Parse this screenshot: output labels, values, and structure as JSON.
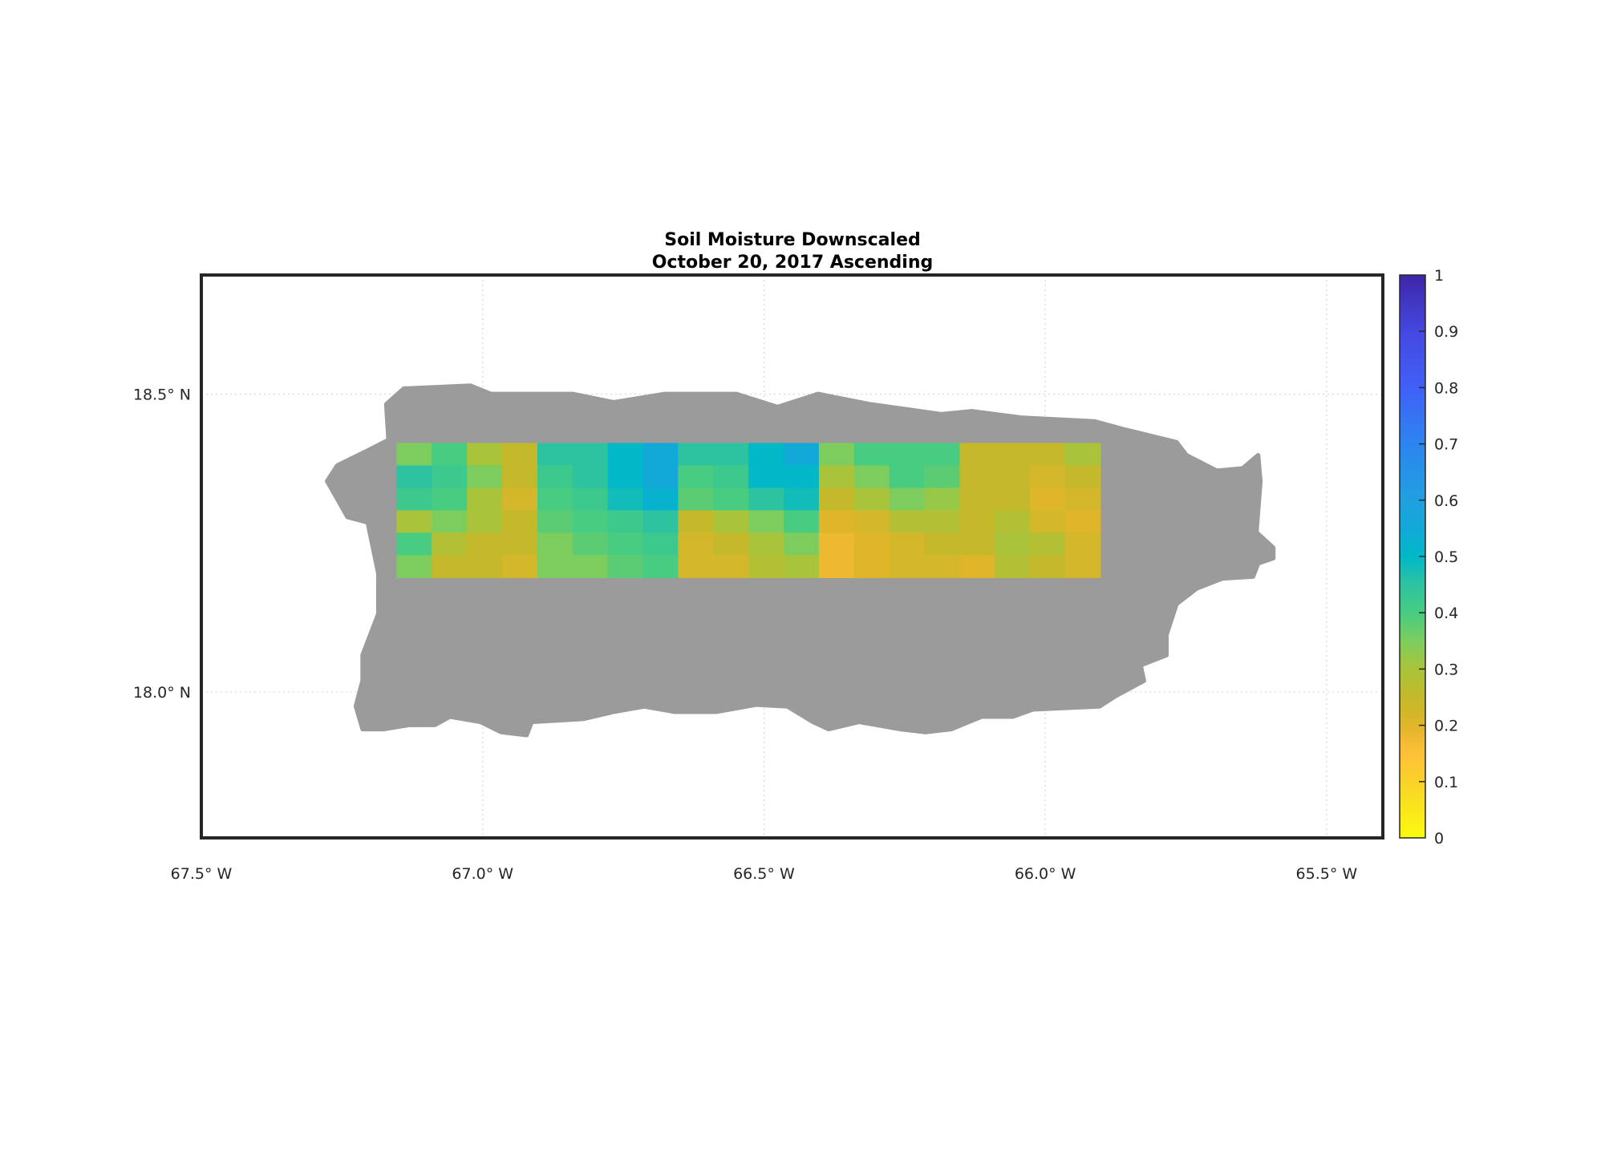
{
  "chart_data": {
    "type": "heatmap",
    "title": [
      "Soil Moisture Downscaled",
      "October 20, 2017 Ascending"
    ],
    "xlim": [
      -67.5,
      -65.4
    ],
    "ylim": [
      17.755,
      18.7
    ],
    "x_ticks": [
      -67.5,
      -67.0,
      -66.5,
      -66.0,
      -65.5
    ],
    "x_tick_labels": [
      "67.5° W",
      "67.0° W",
      "66.5° W",
      "66.0° W",
      "65.5° W"
    ],
    "y_ticks": [
      18.5,
      18.0
    ],
    "y_tick_labels": [
      "18.5° N",
      "18.0° N"
    ],
    "grid": true,
    "land_color": "#9b9b9b",
    "land_outline_lonlat": [
      [
        -67.171,
        18.483
      ],
      [
        -67.14,
        18.509
      ],
      [
        -67.022,
        18.514
      ],
      [
        -66.985,
        18.5
      ],
      [
        -66.84,
        18.5
      ],
      [
        -66.767,
        18.486
      ],
      [
        -66.676,
        18.5
      ],
      [
        -66.549,
        18.5
      ],
      [
        -66.476,
        18.478
      ],
      [
        -66.404,
        18.5
      ],
      [
        -66.313,
        18.483
      ],
      [
        -66.185,
        18.466
      ],
      [
        -66.131,
        18.471
      ],
      [
        -66.04,
        18.46
      ],
      [
        -65.913,
        18.454
      ],
      [
        -65.858,
        18.44
      ],
      [
        -65.767,
        18.419
      ],
      [
        -65.749,
        18.397
      ],
      [
        -65.695,
        18.371
      ],
      [
        -65.649,
        18.375
      ],
      [
        -65.622,
        18.397
      ],
      [
        -65.618,
        18.354
      ],
      [
        -65.625,
        18.268
      ],
      [
        -65.595,
        18.242
      ],
      [
        -65.595,
        18.225
      ],
      [
        -65.622,
        18.216
      ],
      [
        -65.631,
        18.194
      ],
      [
        -65.685,
        18.191
      ],
      [
        -65.731,
        18.174
      ],
      [
        -65.767,
        18.148
      ],
      [
        -65.785,
        18.096
      ],
      [
        -65.785,
        18.062
      ],
      [
        -65.831,
        18.045
      ],
      [
        -65.825,
        18.019
      ],
      [
        -65.876,
        17.993
      ],
      [
        -65.904,
        17.976
      ],
      [
        -66.022,
        17.971
      ],
      [
        -66.058,
        17.959
      ],
      [
        -66.113,
        17.959
      ],
      [
        -66.167,
        17.938
      ],
      [
        -66.213,
        17.933
      ],
      [
        -66.258,
        17.938
      ],
      [
        -66.331,
        17.95
      ],
      [
        -66.385,
        17.938
      ],
      [
        -66.413,
        17.95
      ],
      [
        -66.458,
        17.976
      ],
      [
        -66.513,
        17.979
      ],
      [
        -66.585,
        17.967
      ],
      [
        -66.658,
        17.967
      ],
      [
        -66.713,
        17.976
      ],
      [
        -66.767,
        17.967
      ],
      [
        -66.822,
        17.955
      ],
      [
        -66.913,
        17.95
      ],
      [
        -66.922,
        17.928
      ],
      [
        -66.967,
        17.933
      ],
      [
        -67.004,
        17.95
      ],
      [
        -67.058,
        17.959
      ],
      [
        -67.085,
        17.945
      ],
      [
        -67.131,
        17.945
      ],
      [
        -67.176,
        17.938
      ],
      [
        -67.213,
        17.938
      ],
      [
        -67.225,
        17.976
      ],
      [
        -67.213,
        18.019
      ],
      [
        -67.213,
        18.062
      ],
      [
        -67.185,
        18.131
      ],
      [
        -67.185,
        18.199
      ],
      [
        -67.204,
        18.285
      ],
      [
        -67.24,
        18.294
      ],
      [
        -67.276,
        18.354
      ],
      [
        -67.258,
        18.38
      ],
      [
        -67.204,
        18.405
      ],
      [
        -67.167,
        18.423
      ]
    ],
    "data_extent": {
      "lon": [
        -67.153,
        -65.902
      ],
      "lat": [
        18.192,
        18.418
      ]
    },
    "values": [
      [
        0.35,
        0.4,
        0.3,
        0.25,
        0.45,
        0.45,
        0.5,
        0.55,
        0.45,
        0.45,
        0.5,
        0.55,
        0.35,
        0.4,
        0.4,
        0.4,
        0.25,
        0.25,
        0.25,
        0.3
      ],
      [
        0.45,
        0.42,
        0.35,
        0.25,
        0.42,
        0.45,
        0.5,
        0.55,
        0.4,
        0.42,
        0.5,
        0.5,
        0.3,
        0.35,
        0.4,
        0.38,
        0.25,
        0.25,
        0.22,
        0.25
      ],
      [
        0.42,
        0.4,
        0.3,
        0.22,
        0.4,
        0.42,
        0.48,
        0.52,
        0.38,
        0.4,
        0.45,
        0.48,
        0.25,
        0.3,
        0.35,
        0.32,
        0.25,
        0.25,
        0.2,
        0.22
      ],
      [
        0.3,
        0.35,
        0.3,
        0.25,
        0.38,
        0.4,
        0.42,
        0.45,
        0.25,
        0.3,
        0.35,
        0.4,
        0.2,
        0.22,
        0.28,
        0.28,
        0.25,
        0.28,
        0.22,
        0.2
      ],
      [
        0.4,
        0.28,
        0.25,
        0.25,
        0.35,
        0.38,
        0.4,
        0.42,
        0.22,
        0.25,
        0.3,
        0.35,
        0.18,
        0.2,
        0.22,
        0.25,
        0.25,
        0.3,
        0.28,
        0.22
      ],
      [
        0.35,
        0.25,
        0.25,
        0.22,
        0.35,
        0.35,
        0.38,
        0.4,
        0.22,
        0.22,
        0.28,
        0.3,
        0.18,
        0.2,
        0.22,
        0.22,
        0.2,
        0.28,
        0.25,
        0.22
      ]
    ],
    "colorbar": {
      "range": [
        0,
        1
      ],
      "ticks": [
        0,
        0.1,
        0.2,
        0.3,
        0.4,
        0.5,
        0.6,
        0.7,
        0.8,
        0.9,
        1
      ],
      "tick_labels": [
        "0",
        "0.1",
        "0.2",
        "0.3",
        "0.4",
        "0.5",
        "0.6",
        "0.7",
        "0.8",
        "0.9",
        "1"
      ],
      "colormap": [
        [
          0.0,
          "#f9fb0e"
        ],
        [
          0.1,
          "#fbd22a"
        ],
        [
          0.15,
          "#ffc038"
        ],
        [
          0.2,
          "#dfb52a"
        ],
        [
          0.25,
          "#c4b92a"
        ],
        [
          0.3,
          "#a9c43a"
        ],
        [
          0.35,
          "#7ccd5e"
        ],
        [
          0.4,
          "#47cc82"
        ],
        [
          0.45,
          "#2ec3a0"
        ],
        [
          0.5,
          "#00b8c8"
        ],
        [
          0.55,
          "#12a9d8"
        ],
        [
          0.6,
          "#20a0e0"
        ],
        [
          0.7,
          "#2d85f0"
        ],
        [
          0.8,
          "#4160f8"
        ],
        [
          0.9,
          "#4448e0"
        ],
        [
          1.0,
          "#3e26a8"
        ]
      ]
    }
  }
}
